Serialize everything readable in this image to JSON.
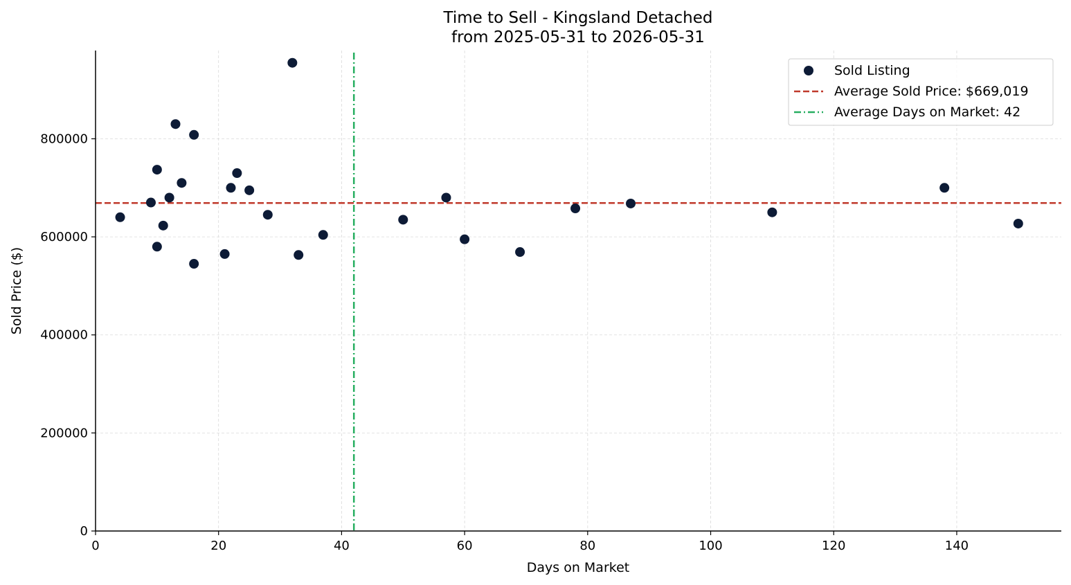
{
  "chart_data": {
    "type": "scatter",
    "title": "Time to Sell - Kingsland Detached",
    "subtitle": "from 2025-05-31 to 2026-05-31",
    "xlabel": "Days on Market",
    "ylabel": "Sold Price ($)",
    "xlim": [
      0,
      157
    ],
    "ylim": [
      0,
      980000
    ],
    "xticks": [
      0,
      20,
      40,
      60,
      80,
      100,
      120,
      140
    ],
    "yticks": [
      0,
      200000,
      400000,
      600000,
      800000
    ],
    "grid": true,
    "legend_position": "top-right",
    "colors": {
      "points": "#0d1b36",
      "avg_price_line": "#c0392b",
      "avg_days_line": "#27ae60",
      "grid": "#d9d9d9",
      "axis": "#000000"
    },
    "series": [
      {
        "name": "Sold Listing",
        "points": [
          {
            "x": 4,
            "y": 640000
          },
          {
            "x": 9,
            "y": 670000
          },
          {
            "x": 10,
            "y": 737000
          },
          {
            "x": 10,
            "y": 580000
          },
          {
            "x": 11,
            "y": 623000
          },
          {
            "x": 12,
            "y": 680000
          },
          {
            "x": 13,
            "y": 830000
          },
          {
            "x": 14,
            "y": 710000
          },
          {
            "x": 16,
            "y": 808000
          },
          {
            "x": 16,
            "y": 545000
          },
          {
            "x": 21,
            "y": 565000
          },
          {
            "x": 22,
            "y": 700000
          },
          {
            "x": 23,
            "y": 730000
          },
          {
            "x": 25,
            "y": 695000
          },
          {
            "x": 28,
            "y": 645000
          },
          {
            "x": 32,
            "y": 955000
          },
          {
            "x": 33,
            "y": 563000
          },
          {
            "x": 37,
            "y": 604000
          },
          {
            "x": 50,
            "y": 635000
          },
          {
            "x": 57,
            "y": 680000
          },
          {
            "x": 60,
            "y": 595000
          },
          {
            "x": 69,
            "y": 569000
          },
          {
            "x": 78,
            "y": 658000
          },
          {
            "x": 87,
            "y": 668000
          },
          {
            "x": 110,
            "y": 650000
          },
          {
            "x": 138,
            "y": 700000
          },
          {
            "x": 150,
            "y": 627000
          }
        ]
      }
    ],
    "reference_lines": {
      "avg_price": {
        "label": "Average Sold Price: $669,019",
        "value": 669019
      },
      "avg_days": {
        "label": "Average Days on Market: 42",
        "value": 42
      }
    }
  }
}
